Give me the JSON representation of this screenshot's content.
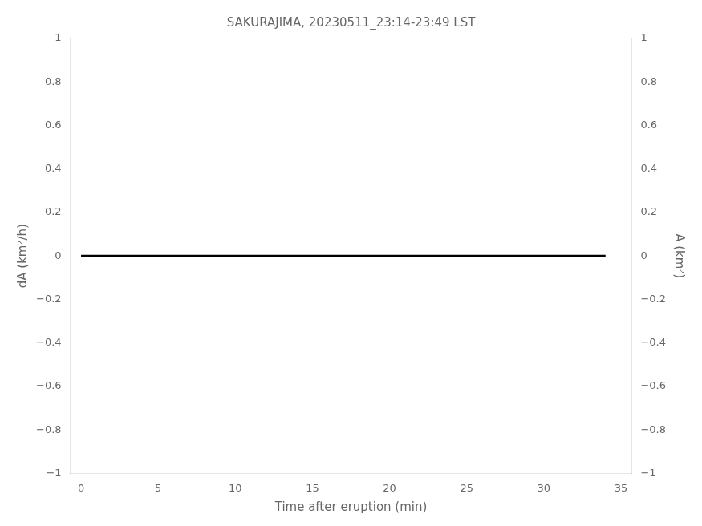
{
  "chart_data": {
    "type": "line",
    "title": "SAKURAJIMA, 20230511_23:14-23:49 LST",
    "xlabel": "Time after eruption (min)",
    "ylabel": "dA (km²/h)",
    "y2label": "A (km²)",
    "x": [
      0,
      34
    ],
    "values": [
      0,
      0
    ],
    "color": "#000000",
    "xlim": [
      -0.7,
      35.7
    ],
    "xticks": [
      0,
      5,
      10,
      15,
      20,
      25,
      30,
      35
    ],
    "ylim": [
      -1,
      1
    ],
    "yticks": [
      {
        "value": -1,
        "label": "−1"
      },
      {
        "value": -0.8,
        "label": "−0.8"
      },
      {
        "value": -0.6,
        "label": "−0.6"
      },
      {
        "value": -0.4,
        "label": "−0.4"
      },
      {
        "value": -0.2,
        "label": "−0.2"
      },
      0,
      0.2,
      0.4,
      0.6,
      0.8,
      1
    ],
    "y2lim": [
      -1,
      1
    ],
    "y2ticks": [
      {
        "value": -1,
        "label": "−1"
      },
      {
        "value": -0.8,
        "label": "−0.8"
      },
      {
        "value": -0.6,
        "label": "−0.6"
      },
      {
        "value": -0.4,
        "label": "−0.4"
      },
      {
        "value": -0.2,
        "label": "−0.2"
      },
      0,
      0.2,
      0.4,
      0.6,
      0.8,
      1
    ],
    "grid": false
  }
}
